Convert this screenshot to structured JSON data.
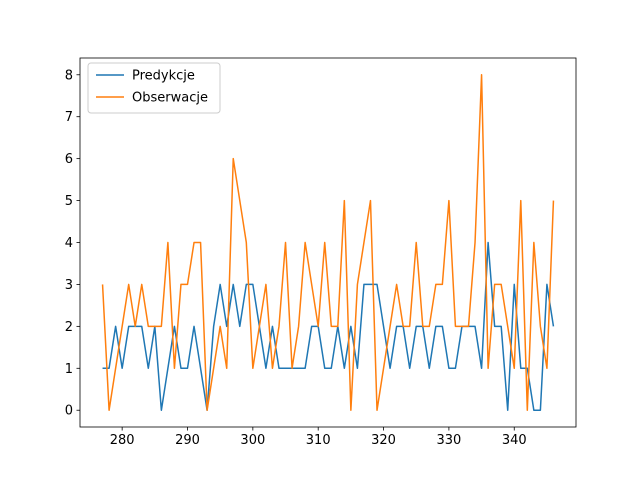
{
  "chart_data": {
    "type": "line",
    "title": "",
    "xlabel": "",
    "ylabel": "",
    "xlim": [
      273.55,
      349.45
    ],
    "ylim": [
      -0.4,
      8.4
    ],
    "xticks": [
      280,
      290,
      300,
      310,
      320,
      330,
      340
    ],
    "yticks": [
      0,
      1,
      2,
      3,
      4,
      5,
      6,
      7,
      8
    ],
    "grid": false,
    "legend_position": "top-left",
    "series": [
      {
        "name": "Predykcje",
        "color": "#1f77b4",
        "x": [
          277,
          278,
          279,
          280,
          281,
          282,
          283,
          284,
          285,
          286,
          287,
          288,
          289,
          290,
          291,
          292,
          293,
          294,
          295,
          296,
          297,
          298,
          299,
          300,
          301,
          302,
          303,
          304,
          305,
          306,
          307,
          308,
          309,
          310,
          311,
          312,
          313,
          314,
          315,
          316,
          317,
          318,
          319,
          320,
          321,
          322,
          323,
          324,
          325,
          326,
          327,
          328,
          329,
          330,
          331,
          332,
          333,
          334,
          335,
          336,
          337,
          338,
          339,
          340,
          341,
          342,
          343,
          344,
          345,
          346
        ],
        "y": [
          1,
          1,
          2,
          1,
          2,
          2,
          2,
          1,
          2,
          0,
          1,
          2,
          1,
          1,
          2,
          1,
          0,
          2,
          3,
          2,
          3,
          2,
          3,
          3,
          2,
          1,
          2,
          1,
          1,
          1,
          1,
          1,
          2,
          2,
          1,
          1,
          2,
          1,
          2,
          1,
          3,
          3,
          3,
          2,
          1,
          2,
          2,
          1,
          2,
          2,
          1,
          2,
          2,
          1,
          1,
          2,
          2,
          2,
          1,
          4,
          2,
          2,
          0,
          3,
          1,
          1,
          0,
          0,
          3,
          2
        ]
      },
      {
        "name": "Obserwacje",
        "color": "#ff7f0e",
        "x": [
          277,
          278,
          279,
          280,
          281,
          282,
          283,
          284,
          285,
          286,
          287,
          288,
          289,
          290,
          291,
          292,
          293,
          294,
          295,
          296,
          297,
          298,
          299,
          300,
          301,
          302,
          303,
          304,
          305,
          306,
          307,
          308,
          309,
          310,
          311,
          312,
          313,
          314,
          315,
          316,
          317,
          318,
          319,
          320,
          321,
          322,
          323,
          324,
          325,
          326,
          327,
          328,
          329,
          330,
          331,
          332,
          333,
          334,
          335,
          336,
          337,
          338,
          339,
          340,
          341,
          342,
          343,
          344,
          345,
          346
        ],
        "y": [
          3,
          0,
          1,
          2,
          3,
          2,
          3,
          2,
          2,
          2,
          4,
          1,
          3,
          3,
          4,
          4,
          0,
          1,
          2,
          1,
          6,
          5,
          4,
          1,
          2,
          3,
          1,
          2,
          4,
          1,
          2,
          4,
          3,
          2,
          4,
          2,
          2,
          5,
          0,
          3,
          4,
          5,
          0,
          1,
          2,
          3,
          2,
          2,
          4,
          2,
          2,
          3,
          3,
          5,
          2,
          2,
          2,
          4,
          8,
          1,
          3,
          3,
          2,
          1,
          5,
          0,
          4,
          2,
          1,
          5
        ]
      }
    ]
  }
}
